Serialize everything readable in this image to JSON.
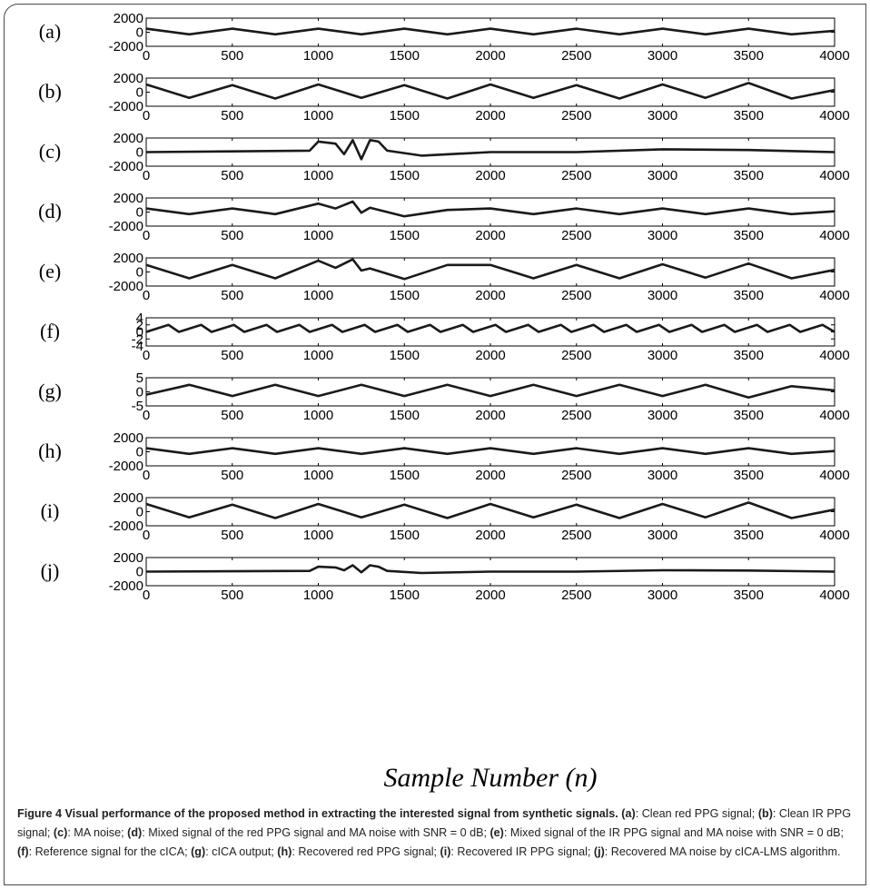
{
  "chart_data": {
    "type": "line",
    "xlabel": "Sample Number (n)",
    "x_range": [
      0,
      4000
    ],
    "x_ticks": [
      "0",
      "500",
      "1000",
      "1500",
      "2000",
      "2500",
      "3000",
      "3500",
      "4000"
    ],
    "subplots": [
      {
        "label": "(a)",
        "ylim": [
          -2000,
          2000
        ],
        "yticks": [
          "2000",
          "0",
          "-2000"
        ],
        "series": [
          {
            "x": [
              0,
              250,
              500,
              750,
              1000,
              1250,
              1500,
              1750,
              2000,
              2250,
              2500,
              2750,
              3000,
              3250,
              3500,
              3750,
              4000
            ],
            "y": [
              500,
              -300,
              500,
              -300,
              500,
              -300,
              500,
              -300,
              500,
              -300,
              500,
              -300,
              500,
              -300,
              500,
              -300,
              200
            ]
          }
        ]
      },
      {
        "label": "(b)",
        "ylim": [
          -2000,
          2000
        ],
        "yticks": [
          "2000",
          "0",
          "-2000"
        ],
        "series": [
          {
            "x": [
              0,
              250,
              500,
              750,
              1000,
              1250,
              1500,
              1750,
              2000,
              2250,
              2500,
              2750,
              3000,
              3250,
              3500,
              3750,
              4000
            ],
            "y": [
              1100,
              -800,
              1000,
              -900,
              1100,
              -800,
              1000,
              -900,
              1100,
              -800,
              1000,
              -900,
              1100,
              -800,
              1300,
              -900,
              300
            ]
          }
        ]
      },
      {
        "label": "(c)",
        "ylim": [
          -2000,
          2000
        ],
        "yticks": [
          "2000",
          "0",
          "-2000"
        ],
        "series": [
          {
            "x": [
              0,
              500,
              950,
              1000,
              1100,
              1150,
              1200,
              1250,
              1300,
              1350,
              1400,
              1600,
              2000,
              2500,
              3000,
              3500,
              4000
            ],
            "y": [
              0,
              100,
              200,
              1500,
              1200,
              -300,
              1700,
              -1000,
              1700,
              1500,
              200,
              -500,
              0,
              0,
              400,
              300,
              0
            ]
          }
        ]
      },
      {
        "label": "(d)",
        "ylim": [
          -2000,
          2000
        ],
        "yticks": [
          "2000",
          "0",
          "-2000"
        ],
        "series": [
          {
            "x": [
              0,
              250,
              500,
              750,
              1000,
              1100,
              1200,
              1250,
              1300,
              1500,
              1750,
              2000,
              2250,
              2500,
              2750,
              3000,
              3250,
              3500,
              3750,
              4000
            ],
            "y": [
              500,
              -300,
              500,
              -300,
              1200,
              500,
              1500,
              -100,
              600,
              -600,
              300,
              500,
              -300,
              500,
              -300,
              500,
              -300,
              500,
              -300,
              100
            ]
          }
        ]
      },
      {
        "label": "(e)",
        "ylim": [
          -2000,
          2000
        ],
        "yticks": [
          "2000",
          "0",
          "-2000"
        ],
        "series": [
          {
            "x": [
              0,
              250,
              500,
              750,
              1000,
              1100,
              1200,
              1250,
              1300,
              1500,
              1750,
              2000,
              2250,
              2500,
              2750,
              3000,
              3250,
              3500,
              3750,
              4000
            ],
            "y": [
              1000,
              -900,
              1000,
              -900,
              1600,
              600,
              1800,
              200,
              500,
              -1000,
              1000,
              1000,
              -900,
              1000,
              -900,
              1100,
              -800,
              1200,
              -900,
              300
            ]
          }
        ]
      },
      {
        "label": "(f)",
        "ylim": [
          -4,
          4
        ],
        "yticks": [
          "4",
          "2",
          "0",
          "-2",
          "-4"
        ],
        "series": [
          {
            "x": [
              0,
              130,
              190,
              320,
              380,
              510,
              570,
              700,
              760,
              890,
              950,
              1080,
              1140,
              1270,
              1330,
              1460,
              1520,
              1650,
              1710,
              1840,
              1900,
              2030,
              2090,
              2220,
              2280,
              2410,
              2470,
              2600,
              2660,
              2790,
              2850,
              2980,
              3040,
              3170,
              3230,
              3360,
              3420,
              3550,
              3610,
              3740,
              3800,
              3930,
              4000
            ],
            "y": [
              0,
              2,
              0,
              2,
              0,
              2,
              0,
              2,
              0,
              2,
              0,
              2,
              0,
              2,
              0,
              2,
              0,
              2,
              0,
              2,
              0,
              2,
              0,
              2,
              0,
              2,
              0,
              2,
              0,
              2,
              0,
              2,
              0,
              2,
              0,
              2,
              0,
              2,
              0,
              2,
              0,
              2,
              0
            ]
          }
        ]
      },
      {
        "label": "(g)",
        "ylim": [
          -5,
          5
        ],
        "yticks": [
          "5",
          "0",
          "-5"
        ],
        "series": [
          {
            "x": [
              0,
              250,
              500,
              750,
              1000,
              1250,
              1500,
              1750,
              2000,
              2250,
              2500,
              2750,
              3000,
              3250,
              3500,
              3750,
              4000
            ],
            "y": [
              -1,
              2.5,
              -1.5,
              2.5,
              -1.5,
              2.5,
              -1.5,
              2.5,
              -1.5,
              2.5,
              -1.5,
              2.5,
              -1.5,
              2.5,
              -2,
              2,
              0.5
            ]
          }
        ]
      },
      {
        "label": "(h)",
        "ylim": [
          -2000,
          2000
        ],
        "yticks": [
          "2000",
          "0",
          "-2000"
        ],
        "series": [
          {
            "x": [
              0,
              250,
              500,
              750,
              1000,
              1250,
              1500,
              1750,
              2000,
              2250,
              2500,
              2750,
              3000,
              3250,
              3500,
              3750,
              4000
            ],
            "y": [
              500,
              -300,
              500,
              -300,
              500,
              -300,
              500,
              -300,
              500,
              -300,
              500,
              -300,
              500,
              -300,
              500,
              -300,
              100
            ]
          }
        ]
      },
      {
        "label": "(i)",
        "ylim": [
          -2000,
          2000
        ],
        "yticks": [
          "2000",
          "0",
          "-2000"
        ],
        "series": [
          {
            "x": [
              0,
              250,
              500,
              750,
              1000,
              1250,
              1500,
              1750,
              2000,
              2250,
              2500,
              2750,
              3000,
              3250,
              3500,
              3750,
              4000
            ],
            "y": [
              1100,
              -800,
              1000,
              -900,
              1100,
              -800,
              1000,
              -900,
              1100,
              -800,
              1000,
              -900,
              1100,
              -800,
              1300,
              -900,
              300
            ]
          }
        ]
      },
      {
        "label": "(j)",
        "ylim": [
          -2000,
          2000
        ],
        "yticks": [
          "2000",
          "0",
          "-2000"
        ],
        "series": [
          {
            "x": [
              0,
              500,
              950,
              1000,
              1100,
              1150,
              1200,
              1250,
              1300,
              1350,
              1400,
              1600,
              2000,
              2500,
              3000,
              3500,
              4000
            ],
            "y": [
              0,
              50,
              100,
              700,
              600,
              200,
              900,
              -100,
              900,
              700,
              100,
              -200,
              0,
              0,
              200,
              150,
              0
            ]
          }
        ]
      }
    ]
  },
  "caption": {
    "figure_label": "Figure 4",
    "title": "Visual performance of the proposed method in extracting the interested signal from synthetic signals.",
    "parts": [
      {
        "tag": "(a)",
        "text": ": Clean red PPG signal; "
      },
      {
        "tag": "(b)",
        "text": ": Clean IR PPG signal; "
      },
      {
        "tag": "(c)",
        "text": ": MA noise; "
      },
      {
        "tag": "(d)",
        "text": ": Mixed signal of the red PPG signal and MA noise with SNR = 0 dB; "
      },
      {
        "tag": "(e)",
        "text": ": Mixed signal of the IR PPG signal and MA noise with SNR = 0 dB; "
      },
      {
        "tag": "(f)",
        "text": ": Reference signal for the cICA; "
      },
      {
        "tag": "(g)",
        "text": ": cICA output; "
      },
      {
        "tag": "(h)",
        "text": ": Recovered red PPG signal; "
      },
      {
        "tag": "(i)",
        "text": ": Recovered IR PPG signal; "
      },
      {
        "tag": "(j)",
        "text": ": Recovered MA noise by cICA-LMS algorithm."
      }
    ]
  }
}
